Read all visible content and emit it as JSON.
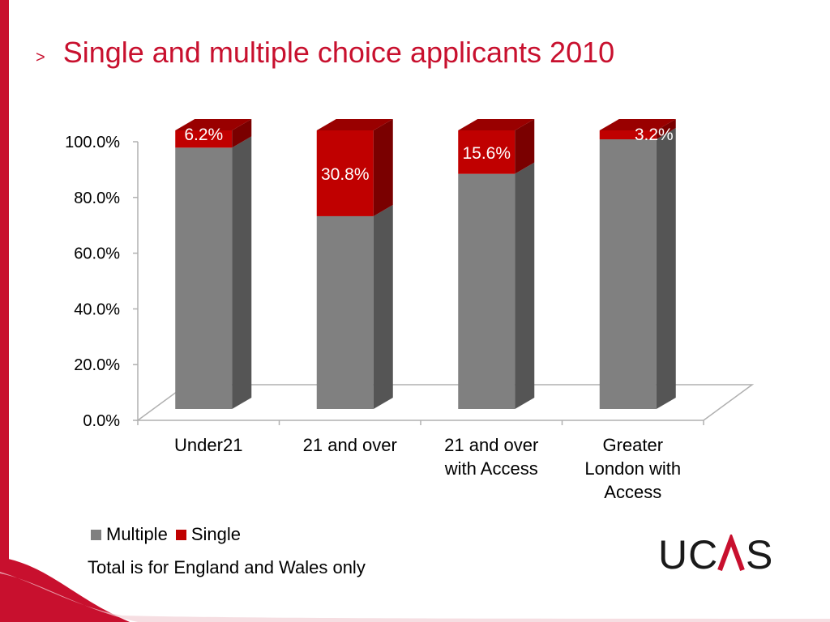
{
  "slide": {
    "arrow": ">",
    "title": "Single and multiple choice applicants 2010",
    "footnote": "Total is for England and Wales only",
    "logo_text": "UCAS"
  },
  "colors": {
    "accent": "#c8102e",
    "multiple": "#808080",
    "single": "#c00000"
  },
  "chart_data": {
    "type": "bar",
    "stacked": true,
    "three_d": true,
    "categories": [
      [
        "Under21"
      ],
      [
        "21 and over"
      ],
      [
        "21 and over",
        "with Access"
      ],
      [
        "Greater",
        "London with",
        "Access"
      ]
    ],
    "series": [
      {
        "name": "Multiple",
        "values": [
          93.8,
          69.2,
          84.4,
          96.8
        ]
      },
      {
        "name": "Single",
        "values": [
          6.2,
          30.8,
          15.6,
          3.2
        ]
      }
    ],
    "data_labels": [
      "6.2%",
      "30.8%",
      "15.6%",
      "3.2%"
    ],
    "y_ticks": [
      "0.0%",
      "20.0%",
      "40.0%",
      "60.0%",
      "80.0%",
      "100.0%"
    ],
    "ylim": [
      0,
      100
    ],
    "legend_position": "bottom-left",
    "grid": false
  }
}
